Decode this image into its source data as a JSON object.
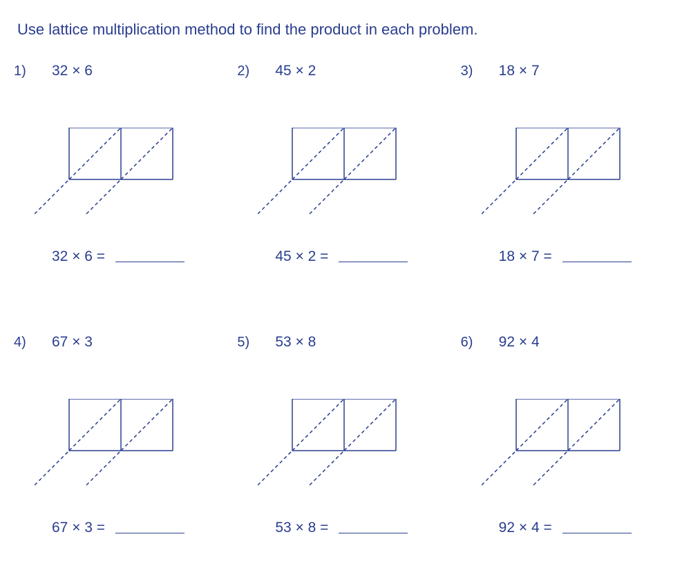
{
  "instruction": "Use lattice multiplication method to find the product in each problem.",
  "problems": [
    {
      "num": "1)",
      "expr": "32 × 6",
      "answer_expr": "32 × 6  ="
    },
    {
      "num": "2)",
      "expr": "45 × 2",
      "answer_expr": "45 × 2  ="
    },
    {
      "num": "3)",
      "expr": "18 × 7",
      "answer_expr": "18 × 7  ="
    },
    {
      "num": "4)",
      "expr": "67 × 3",
      "answer_expr": "67 × 3  ="
    },
    {
      "num": "5)",
      "expr": "53 × 8",
      "answer_expr": "53 × 8  ="
    },
    {
      "num": "6)",
      "expr": "92 × 4",
      "answer_expr": "92 × 4  ="
    }
  ],
  "lattice": {
    "type": "diagram",
    "cell_size": 75,
    "cols": 2,
    "rows": 1,
    "tail_len": 50,
    "stroke_color": "#2a3d8f",
    "solid_width": 1.5,
    "dash_pattern": "5,4",
    "dash_width": 1.5
  },
  "colors": {
    "text": "#2a3d8f",
    "background": "#ffffff"
  },
  "typography": {
    "instruction_fontsize": 22,
    "problem_fontsize": 21
  }
}
